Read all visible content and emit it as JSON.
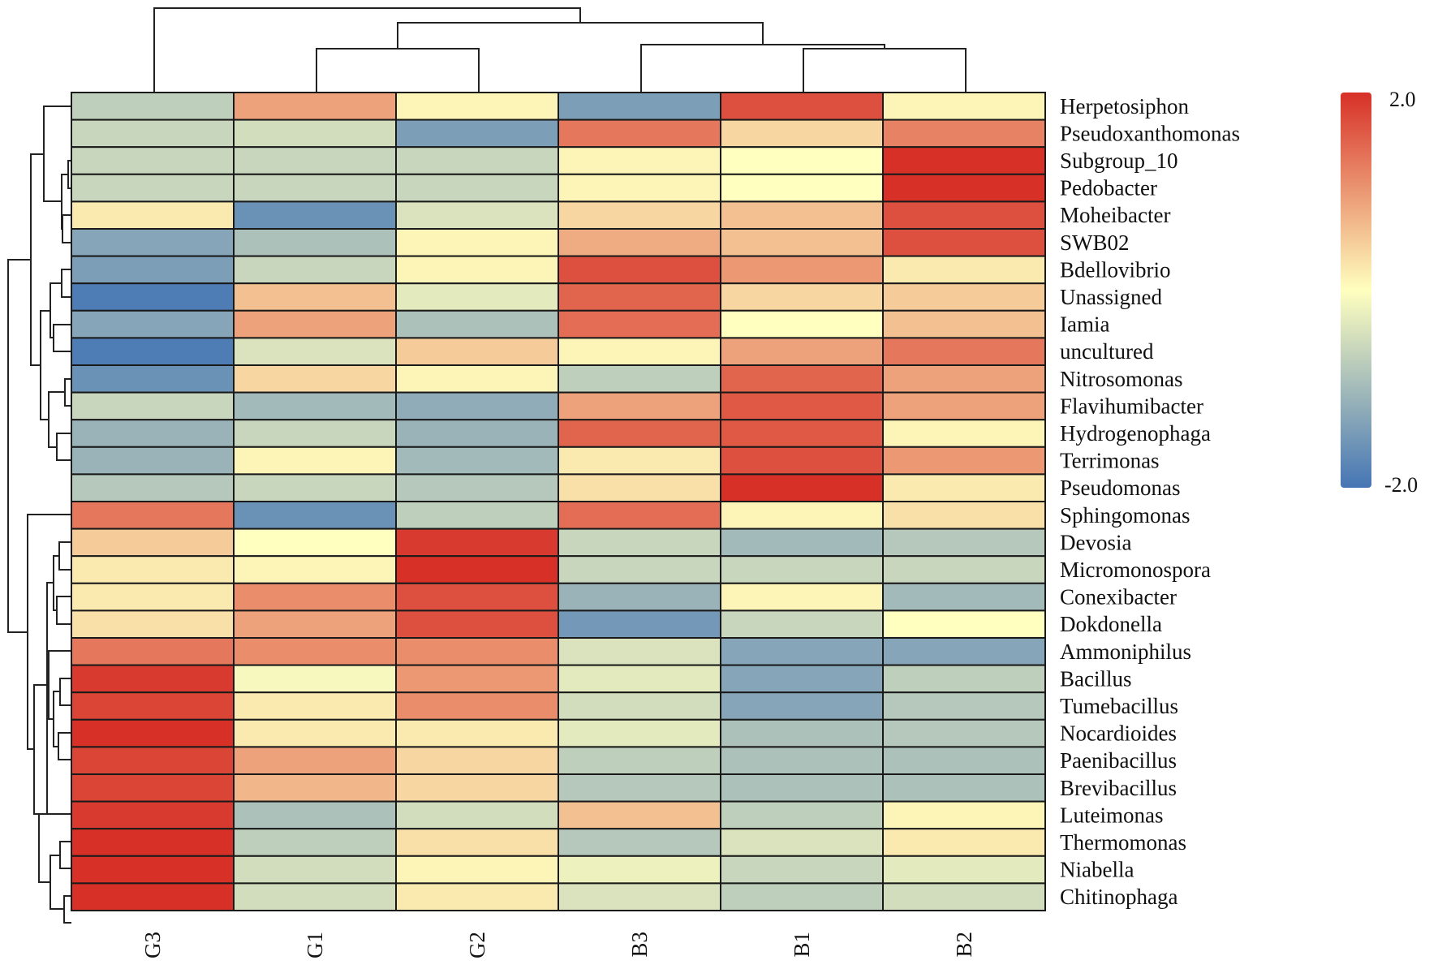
{
  "chart_data": {
    "type": "heatmap",
    "title": "",
    "columns": [
      "G3",
      "G1",
      "G2",
      "B3",
      "B1",
      "B2"
    ],
    "rows": [
      "Herpetosiphon",
      "Pseudoxanthomonas",
      "Subgroup_10",
      "Pedobacter",
      "Moheibacter",
      "SWB02",
      "Bdellovibrio",
      "Unassigned",
      "Iamia",
      "uncultured",
      "Nitrosomonas",
      "Flavihumibacter",
      "Hydrogenophaga",
      "Terrimonas",
      "Pseudomonas",
      "Sphingomonas",
      "Devosia",
      "Micromonospora",
      "Conexibacter",
      "Dokdonella",
      "Ammoniphilus",
      "Bacillus",
      "Tumebacillus",
      "Nocardioides",
      "Paenibacillus",
      "Brevibacillus",
      "Luteimonas",
      "Thermomonas",
      "Niabella",
      "Chitinophaga"
    ],
    "values": [
      [
        -0.7,
        0.9,
        0.1,
        -1.4,
        1.7,
        0.1
      ],
      [
        -0.6,
        -0.5,
        -1.4,
        1.3,
        0.4,
        1.2
      ],
      [
        -0.6,
        -0.6,
        -0.6,
        0.1,
        0.0,
        2.0
      ],
      [
        -0.6,
        -0.6,
        -0.6,
        0.1,
        0.0,
        2.0
      ],
      [
        0.2,
        -1.6,
        -0.4,
        0.4,
        0.6,
        1.7
      ],
      [
        -1.3,
        -0.9,
        0.1,
        0.8,
        0.6,
        1.7
      ],
      [
        -1.4,
        -0.6,
        0.1,
        1.7,
        1.0,
        0.2
      ],
      [
        -1.9,
        0.6,
        -0.3,
        1.5,
        0.4,
        0.5
      ],
      [
        -1.3,
        0.9,
        -0.9,
        1.4,
        0.0,
        0.6
      ],
      [
        -1.9,
        -0.4,
        0.5,
        0.1,
        0.9,
        1.3
      ],
      [
        -1.6,
        0.4,
        0.1,
        -0.7,
        1.5,
        0.9
      ],
      [
        -0.6,
        -1.0,
        -1.2,
        0.9,
        1.6,
        0.9
      ],
      [
        -1.1,
        -0.6,
        -1.1,
        1.5,
        1.6,
        0.1
      ],
      [
        -1.1,
        0.1,
        -1.0,
        0.2,
        1.7,
        1.0
      ],
      [
        -0.8,
        -0.6,
        -0.8,
        0.3,
        2.0,
        0.2
      ],
      [
        1.3,
        -1.6,
        -0.7,
        1.4,
        0.1,
        0.3
      ],
      [
        0.5,
        0.0,
        1.9,
        -0.6,
        -1.0,
        -0.8
      ],
      [
        0.2,
        0.1,
        2.0,
        -0.6,
        -0.6,
        -0.6
      ],
      [
        0.2,
        1.1,
        1.7,
        -1.1,
        0.1,
        -1.0
      ],
      [
        0.3,
        0.9,
        1.7,
        -1.5,
        -0.6,
        0.0
      ],
      [
        1.3,
        1.1,
        1.1,
        -0.4,
        -1.3,
        -1.3
      ],
      [
        1.9,
        -0.1,
        1.0,
        -0.3,
        -1.3,
        -0.7
      ],
      [
        1.8,
        0.2,
        1.1,
        -0.5,
        -1.3,
        -0.8
      ],
      [
        2.0,
        0.2,
        0.2,
        -0.3,
        -0.9,
        -0.8
      ],
      [
        1.8,
        0.9,
        0.4,
        -0.7,
        -0.9,
        -0.9
      ],
      [
        1.8,
        0.7,
        0.4,
        -0.8,
        -0.9,
        -0.9
      ],
      [
        1.9,
        -0.9,
        -0.5,
        0.6,
        -0.7,
        0.1
      ],
      [
        2.0,
        -0.7,
        0.3,
        -0.8,
        -0.4,
        0.2
      ],
      [
        2.0,
        -0.5,
        0.1,
        -0.2,
        -0.6,
        -0.3
      ],
      [
        2.0,
        -0.5,
        0.2,
        -0.4,
        -0.7,
        -0.5
      ]
    ],
    "color_scale": {
      "min": -2.0,
      "max": 2.0,
      "min_label": "-2.0",
      "max_label": "2.0",
      "low_color": "#4575b4",
      "mid_color": "#ffffbf",
      "high_color": "#d73027"
    },
    "legend_position": "right",
    "row_dendrogram": true,
    "column_dendrogram": true
  }
}
